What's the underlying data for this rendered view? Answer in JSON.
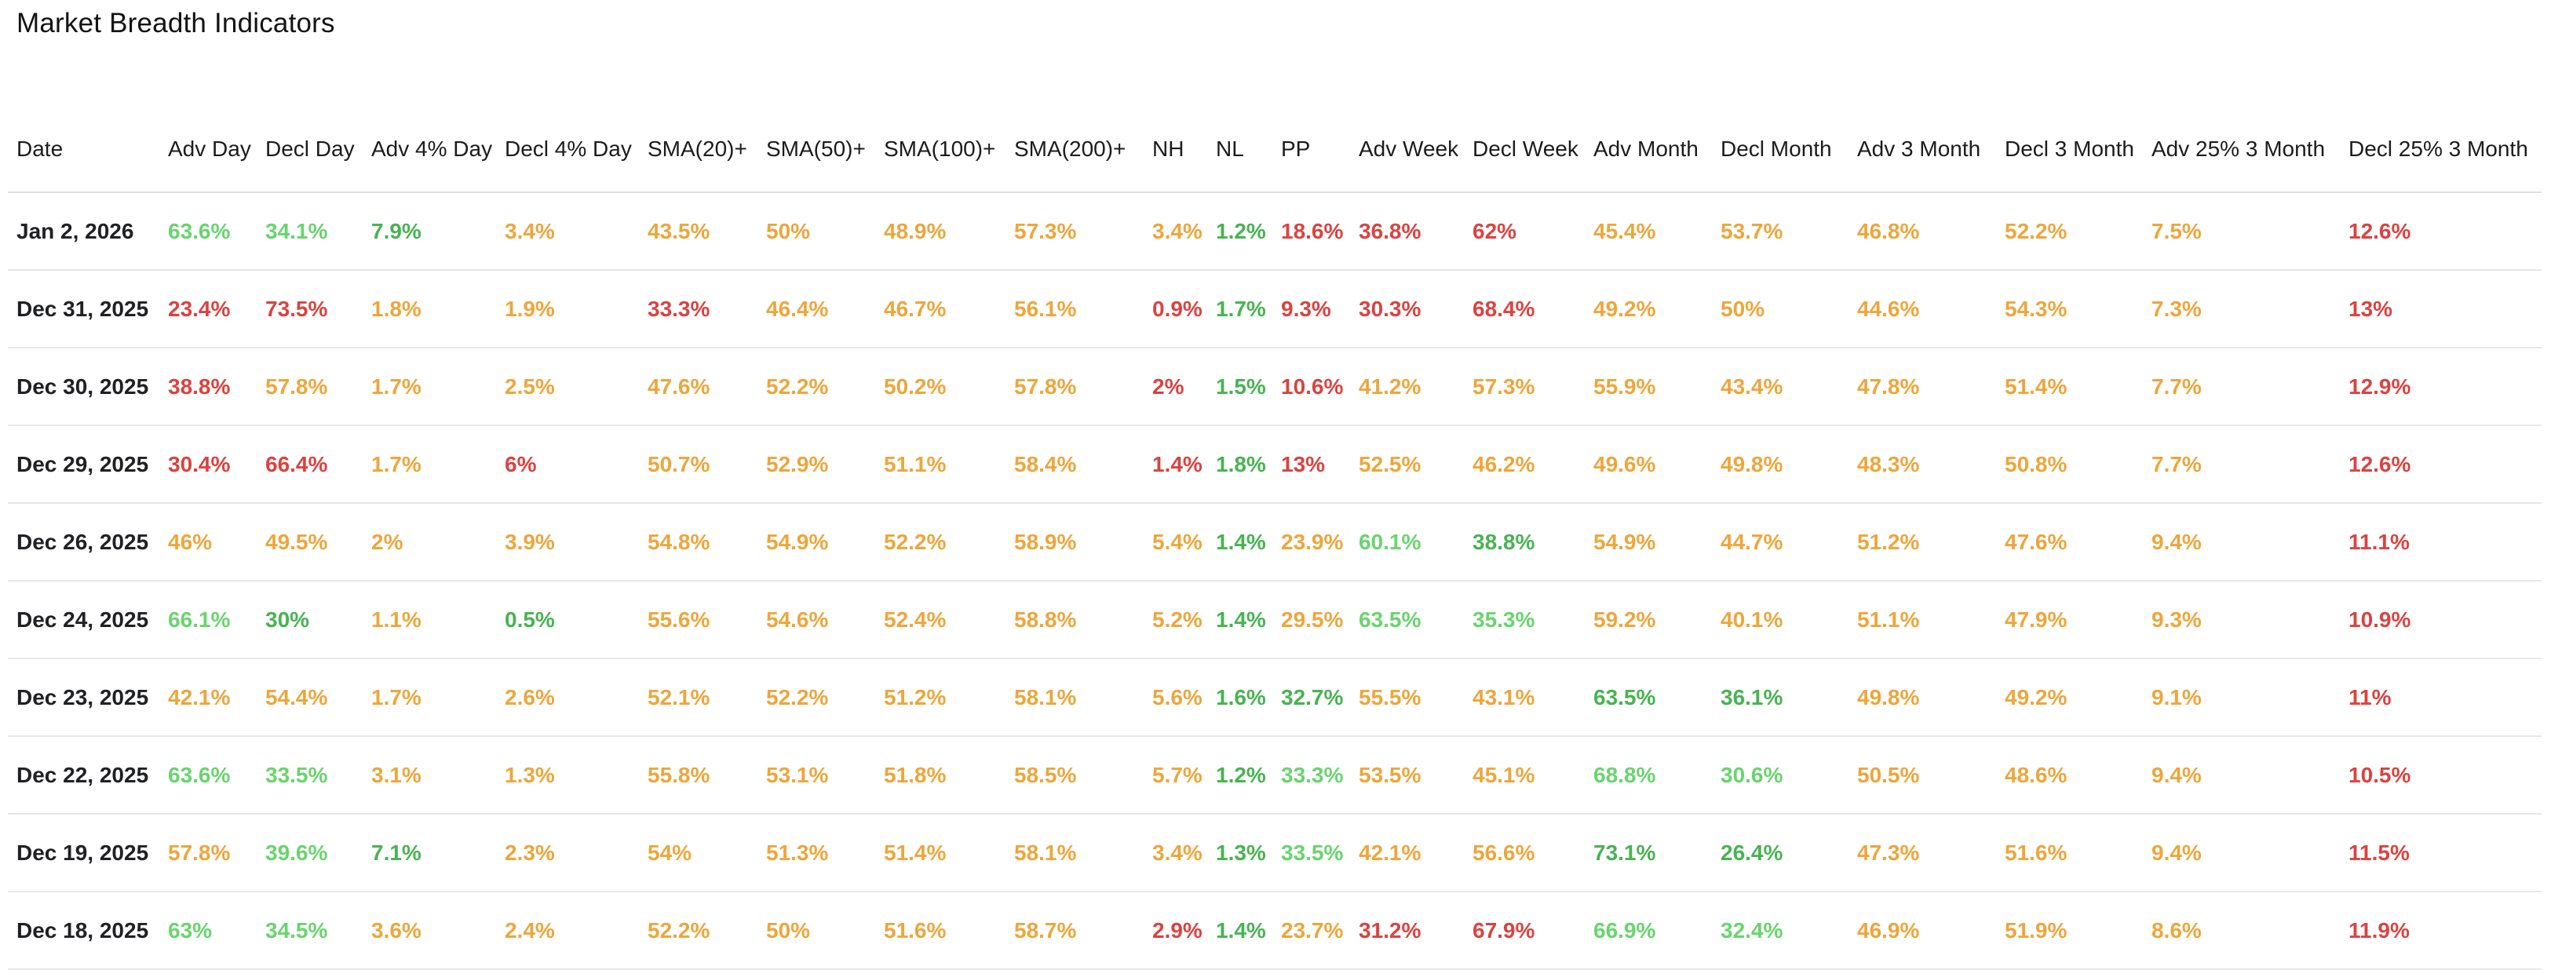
{
  "title": "Market Breadth Indicators",
  "colors": {
    "background": "#ffffff",
    "title_text": "#131313",
    "header_text": "#1c1c1f",
    "date_text": "#202124",
    "divider": "#e1e1e1",
    "palette": {
      "lg": "#69d46e",
      "g": "#48b352",
      "o": "#eda63c",
      "r": "#da4340"
    }
  },
  "chart_data": {
    "type": "table",
    "title": "Market Breadth Indicators",
    "columns": [
      "Date",
      "Adv Day",
      "Decl Day",
      "Adv 4% Day",
      "Decl 4% Day",
      "SMA(20)+",
      "SMA(50)+",
      "SMA(100)+",
      "SMA(200)+",
      "NH",
      "NL",
      "PP",
      "Adv Week",
      "Decl Week",
      "Adv Month",
      "Decl Month",
      "Adv 3 Month",
      "Decl 3 Month",
      "Adv 25% 3 Month",
      "Decl 25% 3 Month"
    ],
    "color_legend": {
      "lg": "light-green",
      "g": "green",
      "o": "amber",
      "r": "red"
    },
    "rows": [
      {
        "date": "Jan 2, 2026",
        "values": [
          "63.6%",
          "34.1%",
          "7.9%",
          "3.4%",
          "43.5%",
          "50%",
          "48.9%",
          "57.3%",
          "3.4%",
          "1.2%",
          "18.6%",
          "36.8%",
          "62%",
          "45.4%",
          "53.7%",
          "46.8%",
          "52.2%",
          "7.5%",
          "12.6%"
        ],
        "colors": [
          "lg",
          "lg",
          "g",
          "o",
          "o",
          "o",
          "o",
          "o",
          "o",
          "g",
          "r",
          "r",
          "r",
          "o",
          "o",
          "o",
          "o",
          "o",
          "r"
        ]
      },
      {
        "date": "Dec 31, 2025",
        "values": [
          "23.4%",
          "73.5%",
          "1.8%",
          "1.9%",
          "33.3%",
          "46.4%",
          "46.7%",
          "56.1%",
          "0.9%",
          "1.7%",
          "9.3%",
          "30.3%",
          "68.4%",
          "49.2%",
          "50%",
          "44.6%",
          "54.3%",
          "7.3%",
          "13%"
        ],
        "colors": [
          "r",
          "r",
          "o",
          "o",
          "r",
          "o",
          "o",
          "o",
          "r",
          "g",
          "r",
          "r",
          "r",
          "o",
          "o",
          "o",
          "o",
          "o",
          "r"
        ]
      },
      {
        "date": "Dec 30, 2025",
        "values": [
          "38.8%",
          "57.8%",
          "1.7%",
          "2.5%",
          "47.6%",
          "52.2%",
          "50.2%",
          "57.8%",
          "2%",
          "1.5%",
          "10.6%",
          "41.2%",
          "57.3%",
          "55.9%",
          "43.4%",
          "47.8%",
          "51.4%",
          "7.7%",
          "12.9%"
        ],
        "colors": [
          "r",
          "o",
          "o",
          "o",
          "o",
          "o",
          "o",
          "o",
          "r",
          "g",
          "r",
          "o",
          "o",
          "o",
          "o",
          "o",
          "o",
          "o",
          "r"
        ]
      },
      {
        "date": "Dec 29, 2025",
        "values": [
          "30.4%",
          "66.4%",
          "1.7%",
          "6%",
          "50.7%",
          "52.9%",
          "51.1%",
          "58.4%",
          "1.4%",
          "1.8%",
          "13%",
          "52.5%",
          "46.2%",
          "49.6%",
          "49.8%",
          "48.3%",
          "50.8%",
          "7.7%",
          "12.6%"
        ],
        "colors": [
          "r",
          "r",
          "o",
          "r",
          "o",
          "o",
          "o",
          "o",
          "r",
          "g",
          "r",
          "o",
          "o",
          "o",
          "o",
          "o",
          "o",
          "o",
          "r"
        ]
      },
      {
        "date": "Dec 26, 2025",
        "values": [
          "46%",
          "49.5%",
          "2%",
          "3.9%",
          "54.8%",
          "54.9%",
          "52.2%",
          "58.9%",
          "5.4%",
          "1.4%",
          "23.9%",
          "60.1%",
          "38.8%",
          "54.9%",
          "44.7%",
          "51.2%",
          "47.6%",
          "9.4%",
          "11.1%"
        ],
        "colors": [
          "o",
          "o",
          "o",
          "o",
          "o",
          "o",
          "o",
          "o",
          "o",
          "g",
          "o",
          "lg",
          "g",
          "o",
          "o",
          "o",
          "o",
          "o",
          "r"
        ]
      },
      {
        "date": "Dec 24, 2025",
        "values": [
          "66.1%",
          "30%",
          "1.1%",
          "0.5%",
          "55.6%",
          "54.6%",
          "52.4%",
          "58.8%",
          "5.2%",
          "1.4%",
          "29.5%",
          "63.5%",
          "35.3%",
          "59.2%",
          "40.1%",
          "51.1%",
          "47.9%",
          "9.3%",
          "10.9%"
        ],
        "colors": [
          "lg",
          "g",
          "o",
          "g",
          "o",
          "o",
          "o",
          "o",
          "o",
          "g",
          "o",
          "lg",
          "lg",
          "o",
          "o",
          "o",
          "o",
          "o",
          "r"
        ]
      },
      {
        "date": "Dec 23, 2025",
        "values": [
          "42.1%",
          "54.4%",
          "1.7%",
          "2.6%",
          "52.1%",
          "52.2%",
          "51.2%",
          "58.1%",
          "5.6%",
          "1.6%",
          "32.7%",
          "55.5%",
          "43.1%",
          "63.5%",
          "36.1%",
          "49.8%",
          "49.2%",
          "9.1%",
          "11%"
        ],
        "colors": [
          "o",
          "o",
          "o",
          "o",
          "o",
          "o",
          "o",
          "o",
          "o",
          "g",
          "g",
          "o",
          "o",
          "g",
          "g",
          "o",
          "o",
          "o",
          "r"
        ]
      },
      {
        "date": "Dec 22, 2025",
        "values": [
          "63.6%",
          "33.5%",
          "3.1%",
          "1.3%",
          "55.8%",
          "53.1%",
          "51.8%",
          "58.5%",
          "5.7%",
          "1.2%",
          "33.3%",
          "53.5%",
          "45.1%",
          "68.8%",
          "30.6%",
          "50.5%",
          "48.6%",
          "9.4%",
          "10.5%"
        ],
        "colors": [
          "lg",
          "lg",
          "o",
          "o",
          "o",
          "o",
          "o",
          "o",
          "o",
          "g",
          "lg",
          "o",
          "o",
          "lg",
          "lg",
          "o",
          "o",
          "o",
          "r"
        ]
      },
      {
        "date": "Dec 19, 2025",
        "values": [
          "57.8%",
          "39.6%",
          "7.1%",
          "2.3%",
          "54%",
          "51.3%",
          "51.4%",
          "58.1%",
          "3.4%",
          "1.3%",
          "33.5%",
          "42.1%",
          "56.6%",
          "73.1%",
          "26.4%",
          "47.3%",
          "51.6%",
          "9.4%",
          "11.5%"
        ],
        "colors": [
          "o",
          "lg",
          "g",
          "o",
          "o",
          "o",
          "o",
          "o",
          "o",
          "g",
          "lg",
          "o",
          "o",
          "g",
          "g",
          "o",
          "o",
          "o",
          "r"
        ]
      },
      {
        "date": "Dec 18, 2025",
        "values": [
          "63%",
          "34.5%",
          "3.6%",
          "2.4%",
          "52.2%",
          "50%",
          "51.6%",
          "58.7%",
          "2.9%",
          "1.4%",
          "23.7%",
          "31.2%",
          "67.9%",
          "66.9%",
          "32.4%",
          "46.9%",
          "51.9%",
          "8.6%",
          "11.9%"
        ],
        "colors": [
          "lg",
          "lg",
          "o",
          "o",
          "o",
          "o",
          "o",
          "o",
          "r",
          "g",
          "o",
          "r",
          "r",
          "lg",
          "lg",
          "o",
          "o",
          "o",
          "r"
        ]
      }
    ]
  }
}
